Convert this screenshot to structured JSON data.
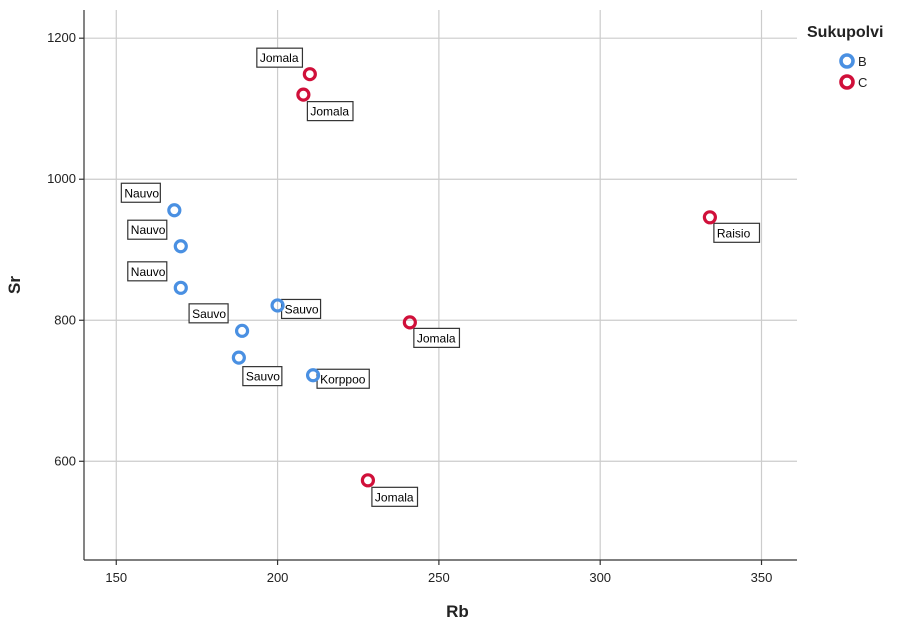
{
  "chart_data": {
    "type": "scatter",
    "xlabel": "Rb",
    "ylabel": "Sr",
    "xlim": [
      140,
      361
    ],
    "ylim": [
      460,
      1240
    ],
    "xticks": [
      150,
      200,
      250,
      300,
      350
    ],
    "yticks": [
      600,
      800,
      1000,
      1200
    ],
    "grid": true,
    "legend": {
      "title": "Sukupolvi",
      "position": "top-right",
      "entries": [
        {
          "label": "B",
          "color": "#4a90e2"
        },
        {
          "label": "C",
          "color": "#d0103a"
        }
      ]
    },
    "points": [
      {
        "x": 168,
        "y": 956,
        "group": "B",
        "label": "Nauvo"
      },
      {
        "x": 170,
        "y": 905,
        "group": "B",
        "label": "Nauvo"
      },
      {
        "x": 170,
        "y": 846,
        "group": "B",
        "label": "Nauvo"
      },
      {
        "x": 200,
        "y": 821,
        "group": "B",
        "label": "Sauvo"
      },
      {
        "x": 189,
        "y": 785,
        "group": "B",
        "label": "Sauvo"
      },
      {
        "x": 188,
        "y": 747,
        "group": "B",
        "label": "Sauvo"
      },
      {
        "x": 211,
        "y": 722,
        "group": "B",
        "label": "Korppoo"
      },
      {
        "x": 210,
        "y": 1149,
        "group": "C",
        "label": "Jomala"
      },
      {
        "x": 208,
        "y": 1120,
        "group": "C",
        "label": "Jomala"
      },
      {
        "x": 241,
        "y": 797,
        "group": "C",
        "label": "Jomala"
      },
      {
        "x": 228,
        "y": 573,
        "group": "C",
        "label": "Jomala"
      },
      {
        "x": 334,
        "y": 946,
        "group": "C",
        "label": "Raisio"
      }
    ]
  }
}
